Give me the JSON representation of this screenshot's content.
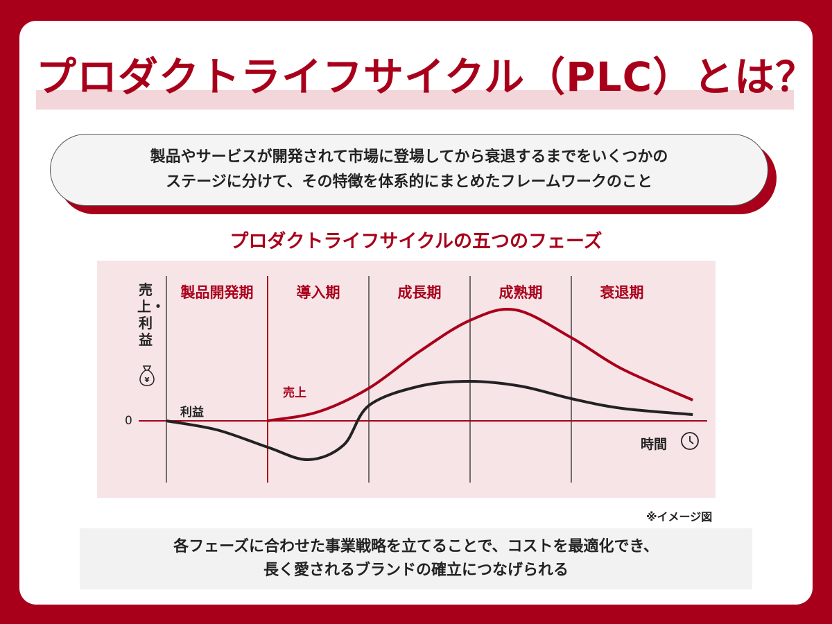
{
  "title": "プロダクトライフサイクル（PLC）とは？",
  "definition": {
    "line1": "製品やサービスが開発されて市場に登場してから衰退するまでをいくつかの",
    "line2": "ステージに分けて、その特徴を体系的にまとめたフレームワークのこと"
  },
  "subtitle": "プロダクトライフサイクルの五つのフェーズ",
  "diagram": {
    "phases": [
      "製品開発期",
      "導入期",
      "成長期",
      "成熟期",
      "衰退期"
    ],
    "y_axis_label": "売上・利益",
    "zero_label": "0",
    "x_axis_label": "時間",
    "sales_label": "売上",
    "profit_label": "利益",
    "icons": {
      "y": "money-bag-yen-icon",
      "x": "clock-icon"
    },
    "colors": {
      "sales": "#a8001a",
      "profit": "#222222",
      "accent": "#a8001a"
    },
    "sales_curve": [
      [
        1,
        0
      ],
      [
        1.5,
        1.3
      ],
      [
        2,
        4.7
      ],
      [
        2.5,
        10
      ],
      [
        3,
        14.5
      ],
      [
        3.45,
        16
      ],
      [
        4,
        12
      ],
      [
        4.5,
        7.5
      ],
      [
        5.2,
        3
      ]
    ],
    "profit_curve": [
      [
        0,
        0
      ],
      [
        0.5,
        -1.3
      ],
      [
        1,
        -3.8
      ],
      [
        1.4,
        -5.6
      ],
      [
        1.75,
        -3.5
      ],
      [
        2,
        2.2
      ],
      [
        2.5,
        5
      ],
      [
        3,
        5.7
      ],
      [
        3.5,
        5
      ],
      [
        4,
        3.2
      ],
      [
        4.5,
        1.8
      ],
      [
        5.2,
        0.9
      ]
    ]
  },
  "note": "※イメージ図",
  "conclusion": {
    "line1": "各フェーズに合わせた事業戦略を立てることで、コストを最適化でき、",
    "line2": "長く愛されるブランドの確立につなげられる"
  }
}
